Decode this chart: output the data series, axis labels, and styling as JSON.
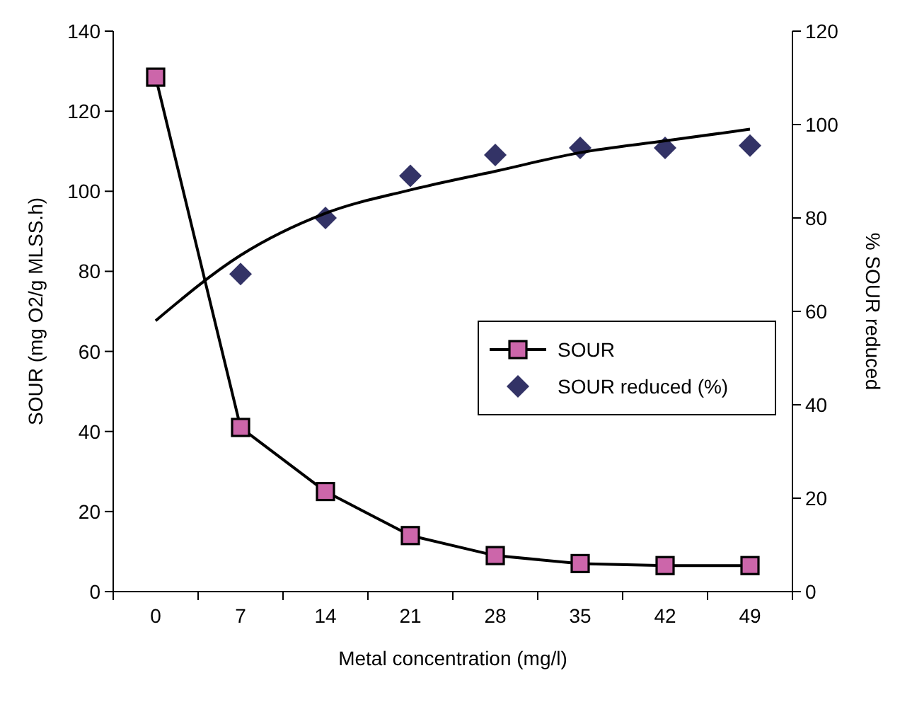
{
  "chart_data": {
    "type": "line",
    "xlabel": "Metal concentration (mg/l)",
    "ylabel": "SOUR (mg O2/g MLSS.h)",
    "y2label": "% SOUR reduced",
    "categories": [
      "0",
      "7",
      "14",
      "21",
      "28",
      "35",
      "42",
      "49"
    ],
    "series": [
      {
        "name": "SOUR",
        "color": "#cc66aa",
        "marker": "square",
        "values": [
          128.5,
          41,
          25,
          14,
          9,
          7,
          6.5,
          6.5
        ]
      },
      {
        "name": "SOUR reduced (%)",
        "type": "scatter",
        "axis": "y2",
        "color": "#333366",
        "marker": "diamond",
        "values": [
          null,
          68,
          80,
          89,
          93.5,
          95,
          95,
          95.5
        ]
      },
      {
        "axis": "y2",
        "color": "#000000",
        "marker": "none",
        "values": [
          58,
          72,
          81,
          86,
          90,
          94,
          96.5,
          99
        ]
      }
    ],
    "ylim": [
      0,
      140
    ],
    "yticks": [
      0,
      20,
      40,
      60,
      80,
      100,
      120,
      140
    ],
    "y2lim": [
      0,
      120
    ],
    "y2ticks": [
      0,
      20,
      40,
      60,
      80,
      100,
      120
    ],
    "grid": false,
    "legend": "right"
  }
}
